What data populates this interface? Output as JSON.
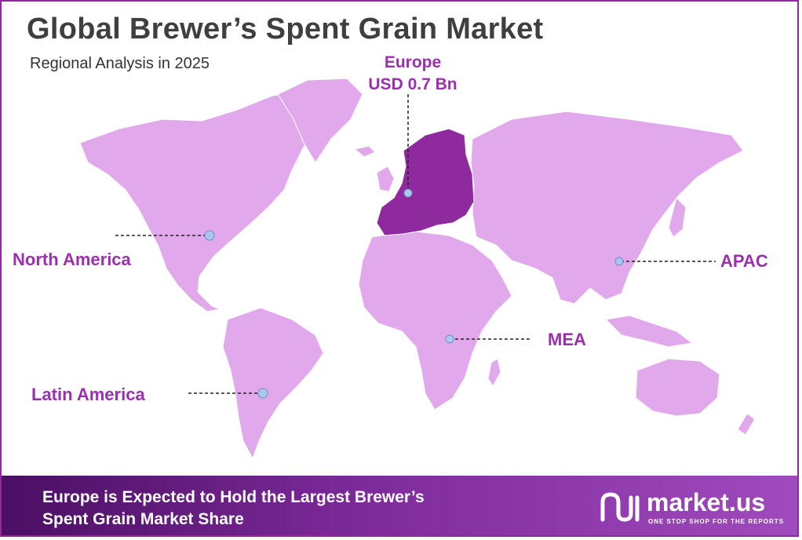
{
  "title": "Global Brewer’s Spent Grain Market",
  "subtitle": "Regional Analysis in 2025",
  "regions": {
    "europe": {
      "name": "Europe",
      "value": "USD 0.7 Bn",
      "highlighted": true
    },
    "north_america": {
      "name": "North America"
    },
    "apac": {
      "name": "APAC"
    },
    "mea": {
      "name": "MEA"
    },
    "latin_america": {
      "name": "Latin America"
    }
  },
  "footer": {
    "line1": "Europe is Expected to Hold the Largest Brewer’s",
    "line2": "Spent Grain Market Share"
  },
  "logo": {
    "name": "market.us",
    "tagline": "ONE STOP SHOP FOR THE REPORTS"
  },
  "colors": {
    "land": "#e1a8ec",
    "highlight": "#8e2a9e",
    "accent": "#9b2fae",
    "marker": "#a8c8f0"
  }
}
